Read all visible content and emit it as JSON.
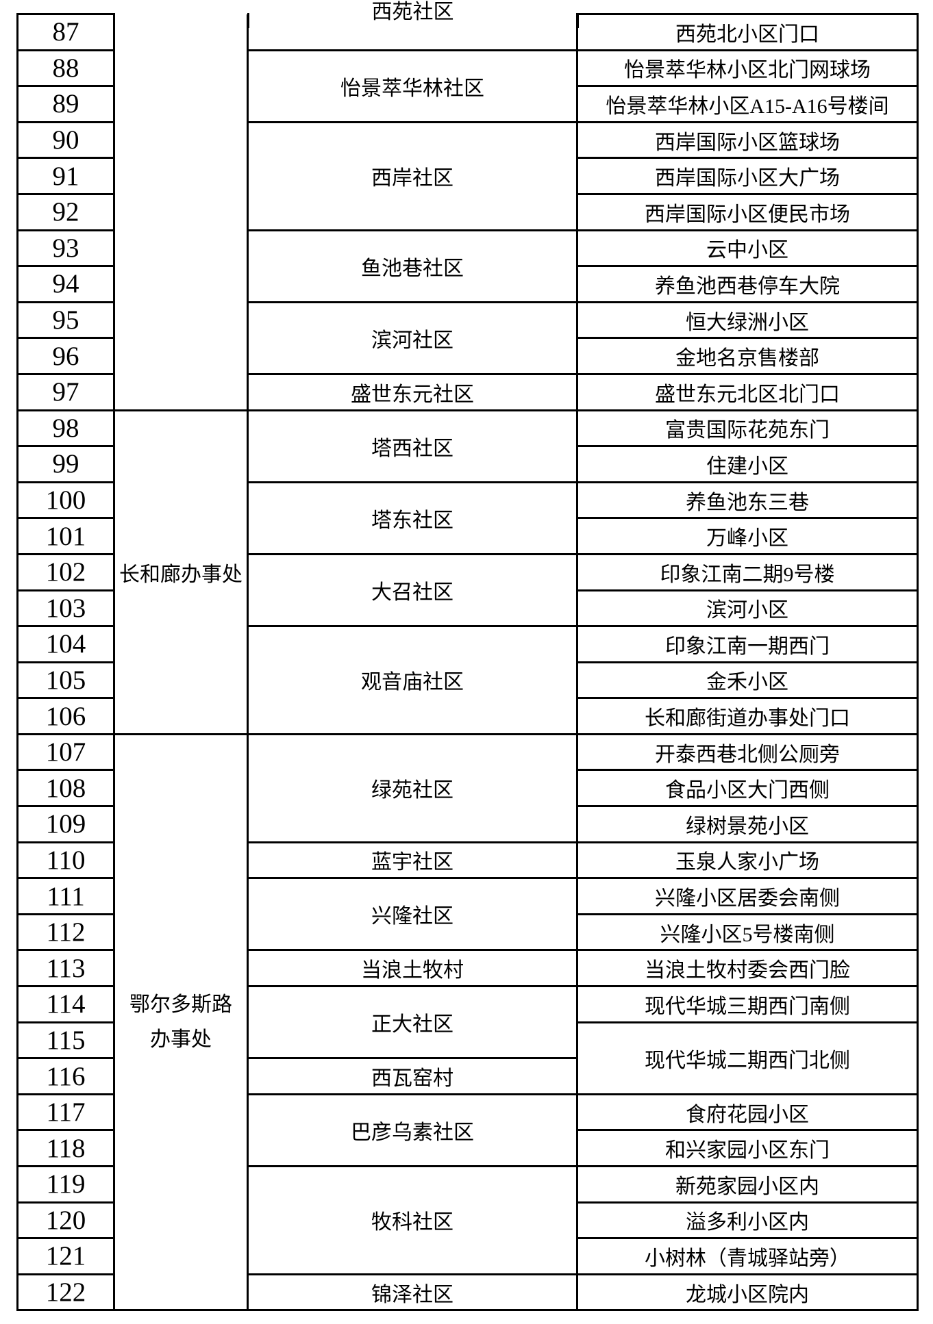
{
  "colors": {
    "background": "#ffffff",
    "text": "#000000",
    "border": "#000000"
  },
  "table": {
    "numbers": [
      "87",
      "88",
      "89",
      "90",
      "91",
      "92",
      "93",
      "94",
      "95",
      "96",
      "97",
      "98",
      "99",
      "100",
      "101",
      "102",
      "103",
      "104",
      "105",
      "106",
      "107",
      "108",
      "109",
      "110",
      "111",
      "112",
      "113",
      "114",
      "115",
      "116",
      "117",
      "118",
      "119",
      "120",
      "121",
      "122"
    ],
    "offices": [
      {
        "label": "",
        "rowspan": 11
      },
      {
        "label": "长和廊办事处",
        "rowspan": 9
      },
      {
        "label": "鄂尔多斯路办事处",
        "rowspan": 16
      }
    ],
    "communities": [
      {
        "label": "西苑社区",
        "rowspan": 1,
        "note": "cell continues above top edge, text clipped"
      },
      {
        "label": "怡景萃华林社区",
        "rowspan": 2
      },
      {
        "label": "西岸社区",
        "rowspan": 3
      },
      {
        "label": "鱼池巷社区",
        "rowspan": 2
      },
      {
        "label": "滨河社区",
        "rowspan": 2
      },
      {
        "label": "盛世东元社区",
        "rowspan": 1
      },
      {
        "label": "塔西社区",
        "rowspan": 2
      },
      {
        "label": "塔东社区",
        "rowspan": 2
      },
      {
        "label": "大召社区",
        "rowspan": 2
      },
      {
        "label": "观音庙社区",
        "rowspan": 3
      },
      {
        "label": "绿苑社区",
        "rowspan": 3
      },
      {
        "label": "蓝宇社区",
        "rowspan": 1
      },
      {
        "label": "兴隆社区",
        "rowspan": 2
      },
      {
        "label": "当浪土牧村",
        "rowspan": 1
      },
      {
        "label": "正大社区",
        "rowspan": 2
      },
      {
        "label": "西瓦窑村",
        "rowspan": 1
      },
      {
        "label": "巴彦乌素社区",
        "rowspan": 2
      },
      {
        "label": "牧科社区",
        "rowspan": 3
      },
      {
        "label": "锦泽社区",
        "rowspan": 1
      }
    ],
    "locations": [
      {
        "label": "西苑北小区门口",
        "rowspan": 1
      },
      {
        "label": "怡景萃华林小区北门网球场",
        "rowspan": 1
      },
      {
        "label": "怡景萃华林小区A15-A16号楼间",
        "rowspan": 1
      },
      {
        "label": "西岸国际小区篮球场",
        "rowspan": 1
      },
      {
        "label": "西岸国际小区大广场",
        "rowspan": 1
      },
      {
        "label": "西岸国际小区便民市场",
        "rowspan": 1
      },
      {
        "label": "云中小区",
        "rowspan": 1
      },
      {
        "label": "养鱼池西巷停车大院",
        "rowspan": 1
      },
      {
        "label": "恒大绿洲小区",
        "rowspan": 1
      },
      {
        "label": "金地名京售楼部",
        "rowspan": 1
      },
      {
        "label": "盛世东元北区北门口",
        "rowspan": 1
      },
      {
        "label": "富贵国际花苑东门",
        "rowspan": 1
      },
      {
        "label": "住建小区",
        "rowspan": 1
      },
      {
        "label": "养鱼池东三巷",
        "rowspan": 1
      },
      {
        "label": "万峰小区",
        "rowspan": 1
      },
      {
        "label": "印象江南二期9号楼",
        "rowspan": 1
      },
      {
        "label": "滨河小区",
        "rowspan": 1
      },
      {
        "label": "印象江南一期西门",
        "rowspan": 1
      },
      {
        "label": "金禾小区",
        "rowspan": 1
      },
      {
        "label": "长和廊街道办事处门口",
        "rowspan": 1
      },
      {
        "label": "开泰西巷北侧公厕旁",
        "rowspan": 1
      },
      {
        "label": "食品小区大门西侧",
        "rowspan": 1
      },
      {
        "label": "绿树景苑小区",
        "rowspan": 1
      },
      {
        "label": "玉泉人家小广场",
        "rowspan": 1
      },
      {
        "label": "兴隆小区居委会南侧",
        "rowspan": 1
      },
      {
        "label": "兴隆小区5号楼南侧",
        "rowspan": 1
      },
      {
        "label": "当浪土牧村委会西门脸",
        "rowspan": 1
      },
      {
        "label": "现代华城三期西门南侧",
        "rowspan": 1
      },
      {
        "label": "现代华城二期西门北侧",
        "rowspan": 2
      },
      {
        "label": "食府花园小区",
        "rowspan": 1
      },
      {
        "label": "和兴家园小区东门",
        "rowspan": 1
      },
      {
        "label": "新苑家园小区内",
        "rowspan": 1
      },
      {
        "label": "溢多利小区内",
        "rowspan": 1
      },
      {
        "label": "小树林（青城驿站旁）",
        "rowspan": 1
      },
      {
        "label": "龙城小区院内",
        "rowspan": 1
      }
    ]
  }
}
